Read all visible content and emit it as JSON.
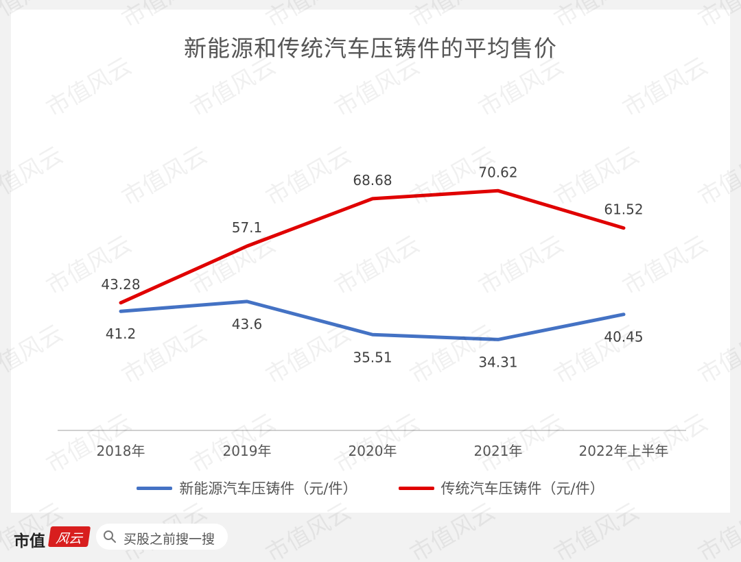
{
  "chart_data": {
    "type": "line",
    "title": "新能源和传统汽车压铸件的平均售价",
    "categories": [
      "2018年",
      "2019年",
      "2020年",
      "2021年",
      "2022年上半年"
    ],
    "series": [
      {
        "name": "新能源汽车压铸件（元/件）",
        "values": [
          41.2,
          43.6,
          35.51,
          34.31,
          40.45
        ],
        "labels": [
          "41.2",
          "43.6",
          "35.51",
          "34.31",
          "40.45"
        ],
        "label_position": "below",
        "color": "#4472c4"
      },
      {
        "name": "传统汽车压铸件（元/件）",
        "values": [
          43.28,
          57.1,
          68.68,
          70.62,
          61.52
        ],
        "labels": [
          "43.28",
          "57.1",
          "68.68",
          "70.62",
          "61.52"
        ],
        "label_position": "above",
        "color": "#e00000"
      }
    ],
    "ylim": [
      20,
      80
    ],
    "grid": false,
    "legend_position": "bottom"
  },
  "footer": {
    "brand": "市值",
    "logo_text": "风云",
    "search_placeholder": "买股之前搜一搜"
  },
  "watermark": "市值风云"
}
